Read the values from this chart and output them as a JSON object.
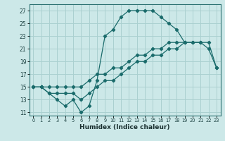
{
  "xlabel": "Humidex (Indice chaleur)",
  "bg_color": "#cce8e8",
  "grid_color": "#aad0d0",
  "line_color": "#1a6b6b",
  "xlim": [
    -0.5,
    23.5
  ],
  "ylim": [
    10.5,
    28
  ],
  "xticks": [
    0,
    1,
    2,
    3,
    4,
    5,
    6,
    7,
    8,
    9,
    10,
    11,
    12,
    13,
    14,
    15,
    16,
    17,
    18,
    19,
    20,
    21,
    22,
    23
  ],
  "yticks": [
    11,
    13,
    15,
    17,
    19,
    21,
    23,
    25,
    27
  ],
  "line1_x": [
    0,
    1,
    2,
    3,
    4,
    5,
    6,
    7,
    8,
    9,
    10,
    11,
    12,
    13,
    14,
    15,
    16,
    17,
    18,
    19
  ],
  "line1_y": [
    15,
    15,
    14,
    13,
    12,
    13,
    11,
    12,
    16,
    23,
    24,
    26,
    27,
    27,
    27,
    27,
    26,
    25,
    24,
    22
  ],
  "line2_x": [
    0,
    1,
    2,
    3,
    4,
    5,
    6,
    7,
    8,
    9,
    10,
    11,
    12,
    13,
    14,
    15,
    16,
    17,
    18,
    19,
    20,
    21,
    22,
    23
  ],
  "line2_y": [
    15,
    15,
    15,
    15,
    15,
    15,
    15,
    16,
    17,
    17,
    18,
    18,
    19,
    20,
    20,
    21,
    21,
    22,
    22,
    22,
    22,
    22,
    22,
    18
  ],
  "line3_x": [
    0,
    1,
    2,
    3,
    4,
    5,
    6,
    7,
    8,
    9,
    10,
    11,
    12,
    13,
    14,
    15,
    16,
    17,
    18,
    19,
    20,
    21,
    22,
    23
  ],
  "line3_y": [
    15,
    15,
    14,
    14,
    14,
    14,
    13,
    14,
    15,
    16,
    16,
    17,
    18,
    19,
    19,
    20,
    20,
    21,
    21,
    22,
    22,
    22,
    21,
    18
  ]
}
